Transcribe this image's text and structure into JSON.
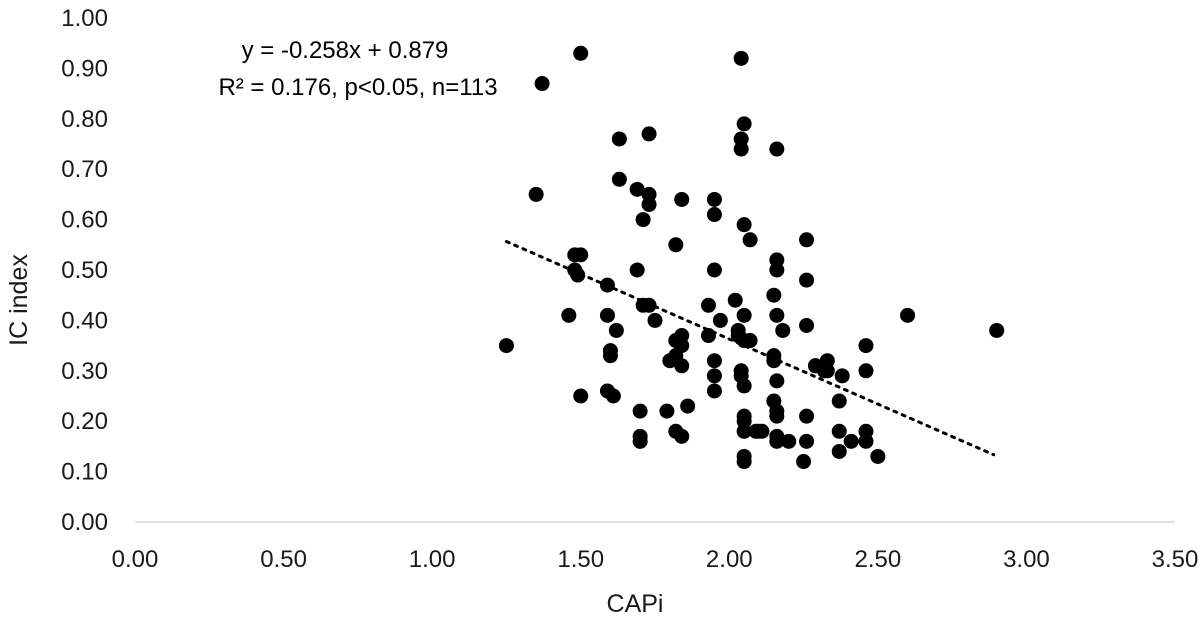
{
  "chart_data": {
    "type": "scatter",
    "xlabel": "CAPi",
    "ylabel": "IC index",
    "xlim": [
      0,
      3.5
    ],
    "ylim": [
      0,
      1.0
    ],
    "x_ticks": [
      "0.00",
      "0.50",
      "1.00",
      "1.50",
      "2.00",
      "2.50",
      "3.00",
      "3.50"
    ],
    "y_ticks": [
      "0.00",
      "0.10",
      "0.20",
      "0.30",
      "0.40",
      "0.50",
      "0.60",
      "0.70",
      "0.80",
      "0.90",
      "1.00"
    ],
    "x_tick_values": [
      0,
      0.5,
      1.0,
      1.5,
      2.0,
      2.5,
      3.0,
      3.5
    ],
    "y_tick_values": [
      0,
      0.1,
      0.2,
      0.3,
      0.4,
      0.5,
      0.6,
      0.7,
      0.8,
      0.9,
      1.0
    ],
    "grid": false,
    "marker_color": "#000000",
    "trendline": {
      "style": "dotted",
      "slope": -0.258,
      "intercept": 0.879,
      "x_range": [
        1.25,
        2.89
      ]
    },
    "annotations": {
      "equation": "y = -0.258x + 0.879",
      "stats": "R² = 0.176, p<0.05, n=113"
    },
    "points": [
      [
        1.25,
        0.35
      ],
      [
        1.35,
        0.65
      ],
      [
        1.37,
        0.87
      ],
      [
        1.46,
        0.41
      ],
      [
        1.48,
        0.53
      ],
      [
        1.48,
        0.5
      ],
      [
        1.49,
        0.49
      ],
      [
        1.5,
        0.53
      ],
      [
        1.5,
        0.25
      ],
      [
        1.5,
        0.93
      ],
      [
        1.59,
        0.47
      ],
      [
        1.59,
        0.41
      ],
      [
        1.59,
        0.26
      ],
      [
        1.6,
        0.34
      ],
      [
        1.6,
        0.33
      ],
      [
        1.61,
        0.25
      ],
      [
        1.62,
        0.38
      ],
      [
        1.63,
        0.68
      ],
      [
        1.63,
        0.76
      ],
      [
        1.69,
        0.5
      ],
      [
        1.69,
        0.66
      ],
      [
        1.7,
        0.22
      ],
      [
        1.7,
        0.17
      ],
      [
        1.7,
        0.16
      ],
      [
        1.71,
        0.6
      ],
      [
        1.71,
        0.43
      ],
      [
        1.73,
        0.43
      ],
      [
        1.73,
        0.63
      ],
      [
        1.73,
        0.65
      ],
      [
        1.73,
        0.77
      ],
      [
        1.75,
        0.4
      ],
      [
        1.79,
        0.22
      ],
      [
        1.82,
        0.55
      ],
      [
        1.82,
        0.36
      ],
      [
        1.82,
        0.33
      ],
      [
        1.82,
        0.18
      ],
      [
        1.84,
        0.64
      ],
      [
        1.84,
        0.37
      ],
      [
        1.84,
        0.35
      ],
      [
        1.84,
        0.31
      ],
      [
        1.84,
        0.17
      ],
      [
        1.86,
        0.23
      ],
      [
        1.93,
        0.43
      ],
      [
        1.93,
        0.37
      ],
      [
        1.95,
        0.64
      ],
      [
        1.95,
        0.61
      ],
      [
        1.95,
        0.5
      ],
      [
        1.95,
        0.32
      ],
      [
        1.95,
        0.29
      ],
      [
        1.95,
        0.26
      ],
      [
        2.02,
        0.44
      ],
      [
        2.03,
        0.38
      ],
      [
        2.03,
        0.37
      ],
      [
        2.04,
        0.92
      ],
      [
        2.04,
        0.76
      ],
      [
        2.04,
        0.74
      ],
      [
        2.04,
        0.3
      ],
      [
        2.04,
        0.29
      ],
      [
        2.05,
        0.79
      ],
      [
        2.05,
        0.59
      ],
      [
        2.05,
        0.41
      ],
      [
        2.05,
        0.36
      ],
      [
        2.05,
        0.27
      ],
      [
        2.05,
        0.21
      ],
      [
        2.05,
        0.2
      ],
      [
        2.05,
        0.18
      ],
      [
        2.05,
        0.13
      ],
      [
        2.05,
        0.12
      ],
      [
        2.07,
        0.36
      ],
      [
        2.07,
        0.56
      ],
      [
        2.09,
        0.18
      ],
      [
        2.1,
        0.18
      ],
      [
        2.15,
        0.45
      ],
      [
        2.15,
        0.33
      ],
      [
        2.15,
        0.32
      ],
      [
        2.15,
        0.24
      ],
      [
        2.16,
        0.74
      ],
      [
        2.16,
        0.52
      ],
      [
        2.16,
        0.5
      ],
      [
        2.16,
        0.41
      ],
      [
        2.16,
        0.28
      ],
      [
        2.16,
        0.22
      ],
      [
        2.16,
        0.21
      ],
      [
        2.16,
        0.17
      ],
      [
        2.16,
        0.16
      ],
      [
        2.18,
        0.38
      ],
      [
        2.2,
        0.16
      ],
      [
        2.25,
        0.12
      ],
      [
        2.26,
        0.56
      ],
      [
        2.26,
        0.48
      ],
      [
        2.26,
        0.39
      ],
      [
        2.26,
        0.21
      ],
      [
        2.26,
        0.16
      ],
      [
        2.29,
        0.31
      ],
      [
        2.29,
        0.31
      ],
      [
        2.33,
        0.32
      ],
      [
        2.33,
        0.3
      ],
      [
        2.37,
        0.24
      ],
      [
        2.37,
        0.18
      ],
      [
        2.37,
        0.14
      ],
      [
        2.38,
        0.29
      ],
      [
        2.41,
        0.16
      ],
      [
        2.46,
        0.35
      ],
      [
        2.46,
        0.3
      ],
      [
        2.46,
        0.18
      ],
      [
        2.46,
        0.16
      ],
      [
        2.5,
        0.13
      ],
      [
        2.6,
        0.41
      ],
      [
        2.9,
        0.38
      ],
      [
        1.8,
        0.32
      ],
      [
        1.97,
        0.4
      ],
      [
        2.11,
        0.18
      ],
      [
        2.32,
        0.3
      ]
    ]
  }
}
